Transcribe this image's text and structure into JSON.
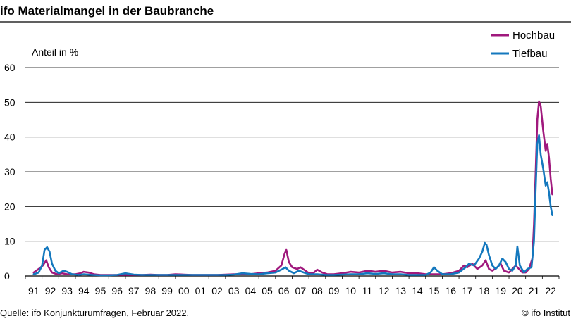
{
  "chart_data": {
    "type": "line",
    "title": "ifo Materialmangel in der Baubranche",
    "ylabel": "Anteil in %",
    "xlabel": "",
    "ylim": [
      0,
      60
    ],
    "yticks": [
      "0",
      "10",
      "20",
      "30",
      "40",
      "50",
      "60"
    ],
    "x_ticks": [
      "91",
      "92",
      "93",
      "94",
      "95",
      "96",
      "97",
      "98",
      "99",
      "00",
      "01",
      "02",
      "03",
      "04",
      "05",
      "06",
      "07",
      "08",
      "09",
      "10",
      "11",
      "12",
      "13",
      "14",
      "15",
      "16",
      "17",
      "18",
      "19",
      "20",
      "21",
      "22"
    ],
    "grid": "horizontal",
    "legend_position": "top-right",
    "source": "Quelle: ifo Konjunkturumfragen, Februar 2022.",
    "copyright": "© ifo Institut",
    "series": [
      {
        "name": "Hochbau",
        "color": "#a0197d",
        "points": [
          [
            1991.0,
            1.0
          ],
          [
            1991.3,
            2.0
          ],
          [
            1991.55,
            3.0
          ],
          [
            1991.75,
            4.5
          ],
          [
            1991.9,
            2.5
          ],
          [
            1992.1,
            1.0
          ],
          [
            1992.4,
            0.5
          ],
          [
            1992.7,
            0.8
          ],
          [
            1993.0,
            0.5
          ],
          [
            1993.5,
            0.5
          ],
          [
            1993.8,
            0.8
          ],
          [
            1994.0,
            1.2
          ],
          [
            1994.3,
            1.0
          ],
          [
            1994.6,
            0.5
          ],
          [
            1995.0,
            0.3
          ],
          [
            1995.5,
            0.3
          ],
          [
            1996.0,
            0.3
          ],
          [
            1996.5,
            0.3
          ],
          [
            1997.0,
            0.3
          ],
          [
            1997.5,
            0.3
          ],
          [
            1998.0,
            0.4
          ],
          [
            1998.5,
            0.3
          ],
          [
            1999.0,
            0.3
          ],
          [
            1999.5,
            0.5
          ],
          [
            2000.0,
            0.4
          ],
          [
            2000.5,
            0.3
          ],
          [
            2001.0,
            0.3
          ],
          [
            2001.5,
            0.3
          ],
          [
            2002.0,
            0.3
          ],
          [
            2002.5,
            0.4
          ],
          [
            2003.0,
            0.5
          ],
          [
            2003.5,
            0.5
          ],
          [
            2004.0,
            0.5
          ],
          [
            2004.5,
            0.8
          ],
          [
            2005.0,
            1.0
          ],
          [
            2005.5,
            1.5
          ],
          [
            2005.85,
            3.0
          ],
          [
            2006.05,
            6.5
          ],
          [
            2006.15,
            7.5
          ],
          [
            2006.3,
            4.0
          ],
          [
            2006.5,
            2.5
          ],
          [
            2006.8,
            2.0
          ],
          [
            2007.0,
            2.5
          ],
          [
            2007.3,
            1.5
          ],
          [
            2007.5,
            0.8
          ],
          [
            2007.8,
            1.0
          ],
          [
            2008.0,
            1.8
          ],
          [
            2008.3,
            1.0
          ],
          [
            2008.6,
            0.5
          ],
          [
            2009.0,
            0.5
          ],
          [
            2009.5,
            0.8
          ],
          [
            2010.0,
            1.2
          ],
          [
            2010.5,
            1.0
          ],
          [
            2011.0,
            1.5
          ],
          [
            2011.5,
            1.2
          ],
          [
            2012.0,
            1.5
          ],
          [
            2012.5,
            1.0
          ],
          [
            2013.0,
            1.2
          ],
          [
            2013.5,
            0.8
          ],
          [
            2014.0,
            0.8
          ],
          [
            2014.5,
            0.5
          ],
          [
            2015.0,
            0.5
          ],
          [
            2015.5,
            0.5
          ],
          [
            2016.0,
            0.8
          ],
          [
            2016.5,
            1.5
          ],
          [
            2016.8,
            3.0
          ],
          [
            2017.0,
            2.5
          ],
          [
            2017.3,
            3.5
          ],
          [
            2017.6,
            2.0
          ],
          [
            2017.9,
            3.0
          ],
          [
            2018.1,
            4.5
          ],
          [
            2018.3,
            2.0
          ],
          [
            2018.5,
            1.5
          ],
          [
            2018.8,
            2.5
          ],
          [
            2019.0,
            3.5
          ],
          [
            2019.2,
            1.5
          ],
          [
            2019.5,
            1.0
          ],
          [
            2019.7,
            2.0
          ],
          [
            2019.9,
            3.0
          ],
          [
            2020.1,
            2.0
          ],
          [
            2020.3,
            1.0
          ],
          [
            2020.5,
            1.0
          ],
          [
            2020.7,
            2.0
          ],
          [
            2020.9,
            5.0
          ],
          [
            2021.0,
            15.0
          ],
          [
            2021.1,
            30.0
          ],
          [
            2021.2,
            45.0
          ],
          [
            2021.3,
            50.3
          ],
          [
            2021.4,
            49.0
          ],
          [
            2021.55,
            42.0
          ],
          [
            2021.7,
            36.0
          ],
          [
            2021.8,
            38.0
          ],
          [
            2021.9,
            34.0
          ],
          [
            2022.0,
            28.0
          ],
          [
            2022.1,
            23.5
          ]
        ]
      },
      {
        "name": "Tiefbau",
        "color": "#1478be",
        "points": [
          [
            1991.0,
            0.5
          ],
          [
            1991.3,
            1.0
          ],
          [
            1991.5,
            3.0
          ],
          [
            1991.65,
            7.5
          ],
          [
            1991.8,
            8.3
          ],
          [
            1991.95,
            7.0
          ],
          [
            1992.1,
            3.5
          ],
          [
            1992.3,
            1.5
          ],
          [
            1992.5,
            0.8
          ],
          [
            1992.8,
            1.5
          ],
          [
            1993.0,
            1.2
          ],
          [
            1993.3,
            0.5
          ],
          [
            1993.7,
            0.3
          ],
          [
            1994.0,
            0.5
          ],
          [
            1994.5,
            0.3
          ],
          [
            1995.0,
            0.2
          ],
          [
            1995.5,
            0.2
          ],
          [
            1996.0,
            0.3
          ],
          [
            1996.5,
            0.8
          ],
          [
            1997.0,
            0.4
          ],
          [
            1997.5,
            0.3
          ],
          [
            1998.0,
            0.3
          ],
          [
            1998.5,
            0.3
          ],
          [
            1999.0,
            0.3
          ],
          [
            1999.5,
            0.3
          ],
          [
            2000.0,
            0.3
          ],
          [
            2000.5,
            0.3
          ],
          [
            2001.0,
            0.3
          ],
          [
            2001.5,
            0.3
          ],
          [
            2002.0,
            0.3
          ],
          [
            2002.5,
            0.3
          ],
          [
            2003.0,
            0.4
          ],
          [
            2003.5,
            0.8
          ],
          [
            2004.0,
            0.6
          ],
          [
            2004.5,
            0.5
          ],
          [
            2005.0,
            0.8
          ],
          [
            2005.5,
            1.0
          ],
          [
            2005.85,
            1.8
          ],
          [
            2006.1,
            2.5
          ],
          [
            2006.3,
            1.5
          ],
          [
            2006.6,
            0.8
          ],
          [
            2006.9,
            1.5
          ],
          [
            2007.2,
            1.0
          ],
          [
            2007.5,
            0.5
          ],
          [
            2008.0,
            0.5
          ],
          [
            2008.5,
            0.3
          ],
          [
            2009.0,
            0.3
          ],
          [
            2009.5,
            0.4
          ],
          [
            2010.0,
            0.5
          ],
          [
            2010.5,
            0.5
          ],
          [
            2011.0,
            0.8
          ],
          [
            2011.5,
            0.6
          ],
          [
            2012.0,
            0.8
          ],
          [
            2012.5,
            0.5
          ],
          [
            2013.0,
            0.5
          ],
          [
            2013.5,
            0.3
          ],
          [
            2014.0,
            0.3
          ],
          [
            2014.5,
            0.3
          ],
          [
            2014.8,
            1.0
          ],
          [
            2015.0,
            2.5
          ],
          [
            2015.2,
            1.5
          ],
          [
            2015.5,
            0.5
          ],
          [
            2016.0,
            0.5
          ],
          [
            2016.5,
            1.0
          ],
          [
            2016.9,
            2.5
          ],
          [
            2017.1,
            3.5
          ],
          [
            2017.4,
            3.0
          ],
          [
            2017.7,
            5.0
          ],
          [
            2017.9,
            7.0
          ],
          [
            2018.05,
            9.5
          ],
          [
            2018.15,
            9.0
          ],
          [
            2018.3,
            6.0
          ],
          [
            2018.5,
            3.0
          ],
          [
            2018.7,
            2.0
          ],
          [
            2018.9,
            3.0
          ],
          [
            2019.1,
            5.0
          ],
          [
            2019.3,
            4.0
          ],
          [
            2019.5,
            2.0
          ],
          [
            2019.7,
            1.5
          ],
          [
            2019.9,
            3.0
          ],
          [
            2020.0,
            8.5
          ],
          [
            2020.15,
            3.0
          ],
          [
            2020.4,
            1.0
          ],
          [
            2020.6,
            2.0
          ],
          [
            2020.85,
            2.5
          ],
          [
            2021.0,
            10.0
          ],
          [
            2021.1,
            25.0
          ],
          [
            2021.2,
            38.0
          ],
          [
            2021.3,
            40.5
          ],
          [
            2021.4,
            35.0
          ],
          [
            2021.55,
            31.0
          ],
          [
            2021.7,
            26.0
          ],
          [
            2021.8,
            27.0
          ],
          [
            2021.9,
            24.0
          ],
          [
            2022.0,
            20.0
          ],
          [
            2022.1,
            17.5
          ]
        ]
      }
    ]
  }
}
